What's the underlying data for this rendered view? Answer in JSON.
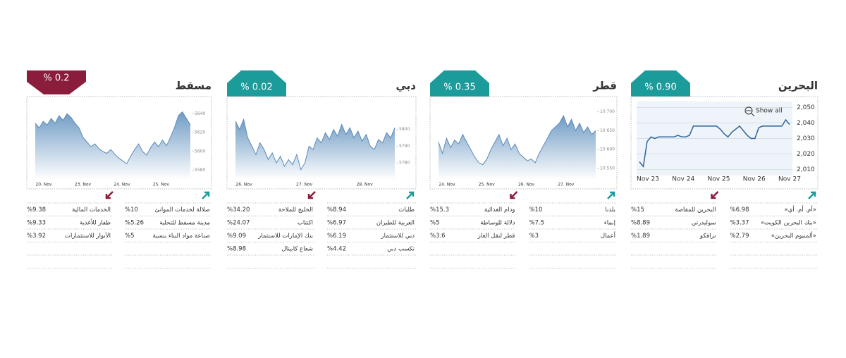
{
  "panels": [
    {
      "name": "البحرين",
      "change": "% 0.90",
      "direction": "up",
      "chart": {
        "type": "line",
        "xticks": [
          "Nov 23",
          "Nov 24",
          "Nov 25",
          "Nov 26",
          "Nov 27"
        ],
        "ylim": [
          2008,
          2052
        ],
        "yticks": [
          {
            "value": 2010,
            "label": "2,010"
          },
          {
            "value": 2020,
            "label": "2,020"
          },
          {
            "value": 2030,
            "label": "2,030"
          },
          {
            "value": 2040,
            "label": "2,040"
          },
          {
            "value": 2050,
            "label": "2,050"
          }
        ],
        "values": [
          2015,
          2012,
          2028,
          2031,
          2030,
          2031,
          2031,
          2031,
          2031,
          2031,
          2032,
          2031,
          2031,
          2032,
          2038,
          2038,
          2038,
          2038,
          2038,
          2038,
          2038,
          2036,
          2033,
          2031,
          2034,
          2036,
          2038,
          2035,
          2032,
          2030,
          2030,
          2037,
          2038,
          2038,
          2038,
          2038,
          2038,
          2038,
          2042,
          2039
        ],
        "color": "#2f6498",
        "grid": true,
        "button": "Show all"
      },
      "gainers": [
        {
          "name": "«أم. أم. أي»",
          "value": "%6.98"
        },
        {
          "name": "«بنك البحرين الكويت»",
          "value": "%3.37"
        },
        {
          "name": "«ألمنيوم البحرين»",
          "value": "%2.79"
        }
      ],
      "losers": [
        {
          "name": "البحرين للمقاصة",
          "value": "%15"
        },
        {
          "name": "سوليدرتي",
          "value": "%8.89"
        },
        {
          "name": "ترافكو",
          "value": "%1.89"
        }
      ]
    },
    {
      "name": "قطر",
      "change": "% 0.35",
      "direction": "up",
      "chart": {
        "type": "area",
        "xticks": [
          "24. Nov",
          "25. Nov",
          "26. Nov",
          "27. Nov"
        ],
        "ylim": [
          10520,
          10720
        ],
        "yticks": [
          {
            "value": 10700,
            "label": "10 700"
          },
          {
            "value": 10650,
            "label": "10 650"
          },
          {
            "value": 10600,
            "label": "10 600"
          },
          {
            "value": 10550,
            "label": "10 550"
          }
        ],
        "values": [
          10620,
          10590,
          10630,
          10605,
          10625,
          10615,
          10640,
          10620,
          10600,
          10580,
          10565,
          10560,
          10575,
          10600,
          10620,
          10640,
          10610,
          10630,
          10600,
          10615,
          10590,
          10580,
          10570,
          10575,
          10565,
          10590,
          10610,
          10630,
          10650,
          10660,
          10670,
          10690,
          10660,
          10680,
          10650,
          10670,
          10645,
          10660,
          10640,
          10650
        ],
        "color": "#5a8bbb"
      },
      "gainers": [
        {
          "name": "بلدنا",
          "value": "%10"
        },
        {
          "name": "إنماء",
          "value": "%7.5"
        },
        {
          "name": "أعمال",
          "value": "%3"
        }
      ],
      "losers": [
        {
          "name": "ودام الغذائية",
          "value": "%15.3"
        },
        {
          "name": "دلالة للوساطة",
          "value": "%5"
        },
        {
          "name": "قطر لنقل الغاز",
          "value": "%3.6"
        }
      ]
    },
    {
      "name": "دبي",
      "change": "% 0.02",
      "direction": "up",
      "chart": {
        "type": "area",
        "xticks": [
          "26. Nov",
          "27. Nov",
          "28. Nov"
        ],
        "ylim": [
          5770,
          5815
        ],
        "yticks": [
          5800,
          5790,
          5780
        ],
        "values": [
          5805,
          5800,
          5806,
          5795,
          5790,
          5785,
          5792,
          5788,
          5782,
          5786,
          5780,
          5784,
          5778,
          5782,
          5779,
          5785,
          5776,
          5780,
          5790,
          5788,
          5795,
          5792,
          5798,
          5794,
          5800,
          5796,
          5803,
          5797,
          5801,
          5795,
          5799,
          5793,
          5797,
          5790,
          5788,
          5794,
          5792,
          5798,
          5795,
          5801
        ],
        "color": "#5a8bbb"
      },
      "gainers": [
        {
          "name": "طلبات",
          "value": "%8.94"
        },
        {
          "name": "العربية للطيران",
          "value": "%6.97"
        },
        {
          "name": "دبي للاستثمار",
          "value": "%6.19"
        },
        {
          "name": "تكسب دبي",
          "value": "%4.42"
        }
      ],
      "losers": [
        {
          "name": "الخليج للملاحة",
          "value": "%34.20"
        },
        {
          "name": "اكتتاب",
          "value": "%24.07"
        },
        {
          "name": "بنك الإمارات للاستثمار",
          "value": "%9.09"
        },
        {
          "name": "شعاع كابيتال",
          "value": "%8.98"
        }
      ]
    },
    {
      "name": "مسقط",
      "change": "% 0.2",
      "direction": "down",
      "chart": {
        "type": "area",
        "xticks": [
          "20. Nov",
          "23. Nov",
          "24. Nov",
          "25. Nov"
        ],
        "ylim": [
          5570,
          5650
        ],
        "yticks": [
          5640,
          5620,
          5600,
          5580
        ],
        "values": [
          5630,
          5625,
          5632,
          5628,
          5635,
          5630,
          5638,
          5633,
          5640,
          5636,
          5630,
          5625,
          5615,
          5610,
          5605,
          5608,
          5603,
          5600,
          5598,
          5602,
          5597,
          5593,
          5590,
          5587,
          5595,
          5602,
          5608,
          5600,
          5596,
          5604,
          5610,
          5605,
          5612,
          5606,
          5615,
          5625,
          5638,
          5642,
          5635,
          5628
        ],
        "color": "#5a8bbb"
      },
      "gainers": [
        {
          "name": "صلالة لخدمات الموانئ",
          "value": "%10"
        },
        {
          "name": "مدينة مسقط للتحلية",
          "value": "%5.26"
        },
        {
          "name": "صناعة مواد البناء بنسبة",
          "value": "%5"
        }
      ],
      "losers": [
        {
          "name": "الخدمات المالية",
          "value": "%9.38"
        },
        {
          "name": "ظفار للأغذية",
          "value": "%9.33"
        },
        {
          "name": "الأنوار للاستثمارات",
          "value": "%3.92"
        }
      ]
    }
  ]
}
